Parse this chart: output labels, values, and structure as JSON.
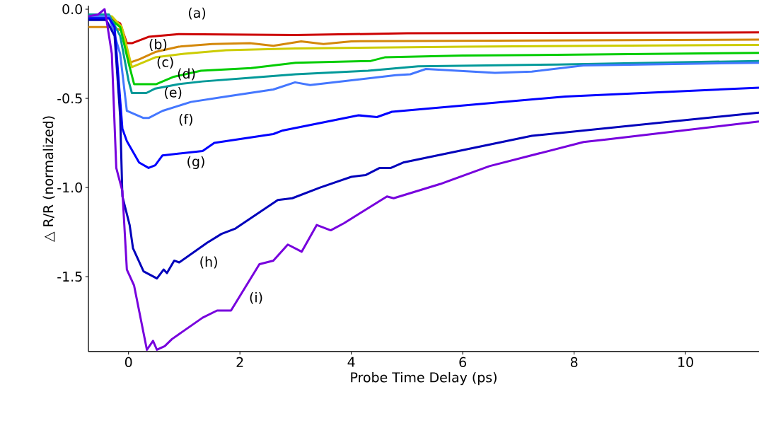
{
  "chart_data": {
    "type": "line",
    "xlabel": "Probe Time Delay (ps)",
    "ylabel": "△ R/R (normalized)",
    "xlim": [
      -0.72,
      11.32
    ],
    "ylim": [
      -1.92,
      0.02
    ],
    "xticks": [
      0,
      2,
      4,
      6,
      8,
      10
    ],
    "yticks": [
      {
        "value": 0,
        "label": "0.0"
      },
      -0.5,
      {
        "value": -1,
        "label": "-1.0"
      },
      -1.5
    ],
    "grid": false,
    "legend": false,
    "marker": "none",
    "line_style": "solid",
    "series": [
      {
        "name": "(a)",
        "color": "#cc0000",
        "x": [
          -0.72,
          -0.35,
          -0.15,
          -0.03,
          0.07,
          0.36,
          0.9,
          3,
          5,
          11.32
        ],
        "values": [
          -0.05,
          -0.05,
          -0.08,
          -0.19,
          -0.19,
          -0.155,
          -0.14,
          -0.145,
          -0.135,
          -0.13
        ]
      },
      {
        "name": "(b)",
        "color": "#d4880a",
        "x": [
          -0.72,
          -0.3,
          -0.12,
          0.02,
          0.2,
          0.48,
          0.9,
          1.5,
          2.18,
          2.6,
          3.1,
          3.5,
          4,
          11.32
        ],
        "values": [
          -0.1,
          -0.1,
          -0.12,
          -0.3,
          -0.28,
          -0.24,
          -0.21,
          -0.195,
          -0.19,
          -0.205,
          -0.18,
          -0.195,
          -0.18,
          -0.17
        ]
      },
      {
        "name": "(c)",
        "color": "#cccc00",
        "x": [
          -0.72,
          -0.3,
          -0.12,
          0.06,
          0.48,
          1.0,
          1.75,
          3,
          6,
          11.32
        ],
        "values": [
          -0.04,
          -0.04,
          -0.1,
          -0.325,
          -0.27,
          -0.25,
          -0.23,
          -0.22,
          -0.21,
          -0.2
        ]
      },
      {
        "name": "(d)",
        "color": "#00cc00",
        "x": [
          -0.72,
          -0.35,
          -0.15,
          0.0,
          0.1,
          0.5,
          0.8,
          1.3,
          2.2,
          3.0,
          4.35,
          4.6,
          6,
          8,
          11.32
        ],
        "values": [
          -0.05,
          -0.05,
          -0.1,
          -0.3,
          -0.42,
          -0.42,
          -0.38,
          -0.345,
          -0.33,
          -0.3,
          -0.29,
          -0.27,
          -0.26,
          -0.255,
          -0.245
        ]
      },
      {
        "name": "(e)",
        "color": "#009999",
        "x": [
          -0.72,
          -0.35,
          -0.15,
          0.0,
          0.06,
          0.32,
          0.48,
          0.9,
          1.33,
          2.18,
          3,
          4.3,
          5.2,
          7.7,
          11.32
        ],
        "values": [
          -0.03,
          -0.03,
          -0.15,
          -0.4,
          -0.47,
          -0.47,
          -0.445,
          -0.42,
          -0.405,
          -0.385,
          -0.365,
          -0.345,
          -0.32,
          -0.31,
          -0.29
        ]
      },
      {
        "name": "(f)",
        "color": "#4477ff",
        "x": [
          -0.72,
          -0.35,
          -0.15,
          -0.03,
          0.27,
          0.36,
          0.61,
          1.12,
          1.75,
          2.6,
          2.99,
          3.26,
          4.8,
          5.06,
          5.34,
          6.58,
          7.24,
          8.17,
          11.32
        ],
        "values": [
          -0.04,
          -0.04,
          -0.25,
          -0.57,
          -0.61,
          -0.61,
          -0.57,
          -0.52,
          -0.49,
          -0.45,
          -0.41,
          -0.425,
          -0.37,
          -0.365,
          -0.335,
          -0.357,
          -0.35,
          -0.315,
          -0.3
        ]
      },
      {
        "name": "(g)",
        "color": "#0000ff",
        "x": [
          -0.72,
          -0.35,
          -0.25,
          -0.11,
          -0.03,
          0.19,
          0.36,
          0.48,
          0.61,
          1.33,
          1.54,
          2.6,
          2.77,
          4.13,
          4.46,
          4.73,
          7.84,
          11.32
        ],
        "values": [
          -0.05,
          -0.05,
          -0.1,
          -0.67,
          -0.74,
          -0.86,
          -0.89,
          -0.875,
          -0.82,
          -0.795,
          -0.75,
          -0.7,
          -0.68,
          -0.595,
          -0.605,
          -0.575,
          -0.49,
          -0.44
        ]
      },
      {
        "name": "(h)",
        "color": "#0000bb",
        "x": [
          -0.72,
          -0.4,
          -0.25,
          -0.15,
          -0.11,
          0.02,
          0.08,
          0.27,
          0.51,
          0.63,
          0.69,
          0.82,
          0.91,
          1.41,
          1.67,
          1.92,
          2.68,
          2.94,
          3.44,
          4.0,
          4.26,
          4.51,
          4.71,
          4.93,
          7.24,
          11.32
        ],
        "values": [
          -0.06,
          -0.06,
          -0.15,
          -0.6,
          -1.05,
          -1.21,
          -1.34,
          -1.47,
          -1.51,
          -1.46,
          -1.48,
          -1.41,
          -1.42,
          -1.31,
          -1.26,
          -1.23,
          -1.07,
          -1.06,
          -1.0,
          -0.94,
          -0.93,
          -0.89,
          -0.89,
          -0.86,
          -0.71,
          -0.58
        ]
      },
      {
        "name": "(i)",
        "color": "#7700dd",
        "x": [
          -0.72,
          -0.55,
          -0.43,
          -0.4,
          -0.3,
          -0.22,
          -0.11,
          -0.03,
          0.1,
          0.33,
          0.44,
          0.51,
          0.65,
          0.78,
          1.33,
          1.59,
          1.84,
          2.35,
          2.6,
          2.86,
          3.11,
          3.38,
          3.63,
          3.87,
          4.64,
          4.76,
          5.6,
          6.48,
          8.17,
          8.6,
          11.32
        ],
        "values": [
          -0.04,
          -0.03,
          0.0,
          -0.05,
          -0.25,
          -0.89,
          -1.02,
          -1.46,
          -1.55,
          -1.91,
          -1.86,
          -1.91,
          -1.89,
          -1.85,
          -1.73,
          -1.69,
          -1.69,
          -1.43,
          -1.41,
          -1.32,
          -1.36,
          -1.21,
          -1.24,
          -1.2,
          -1.05,
          -1.06,
          -0.98,
          -0.88,
          -0.745,
          -0.73,
          -0.63
        ]
      }
    ]
  }
}
